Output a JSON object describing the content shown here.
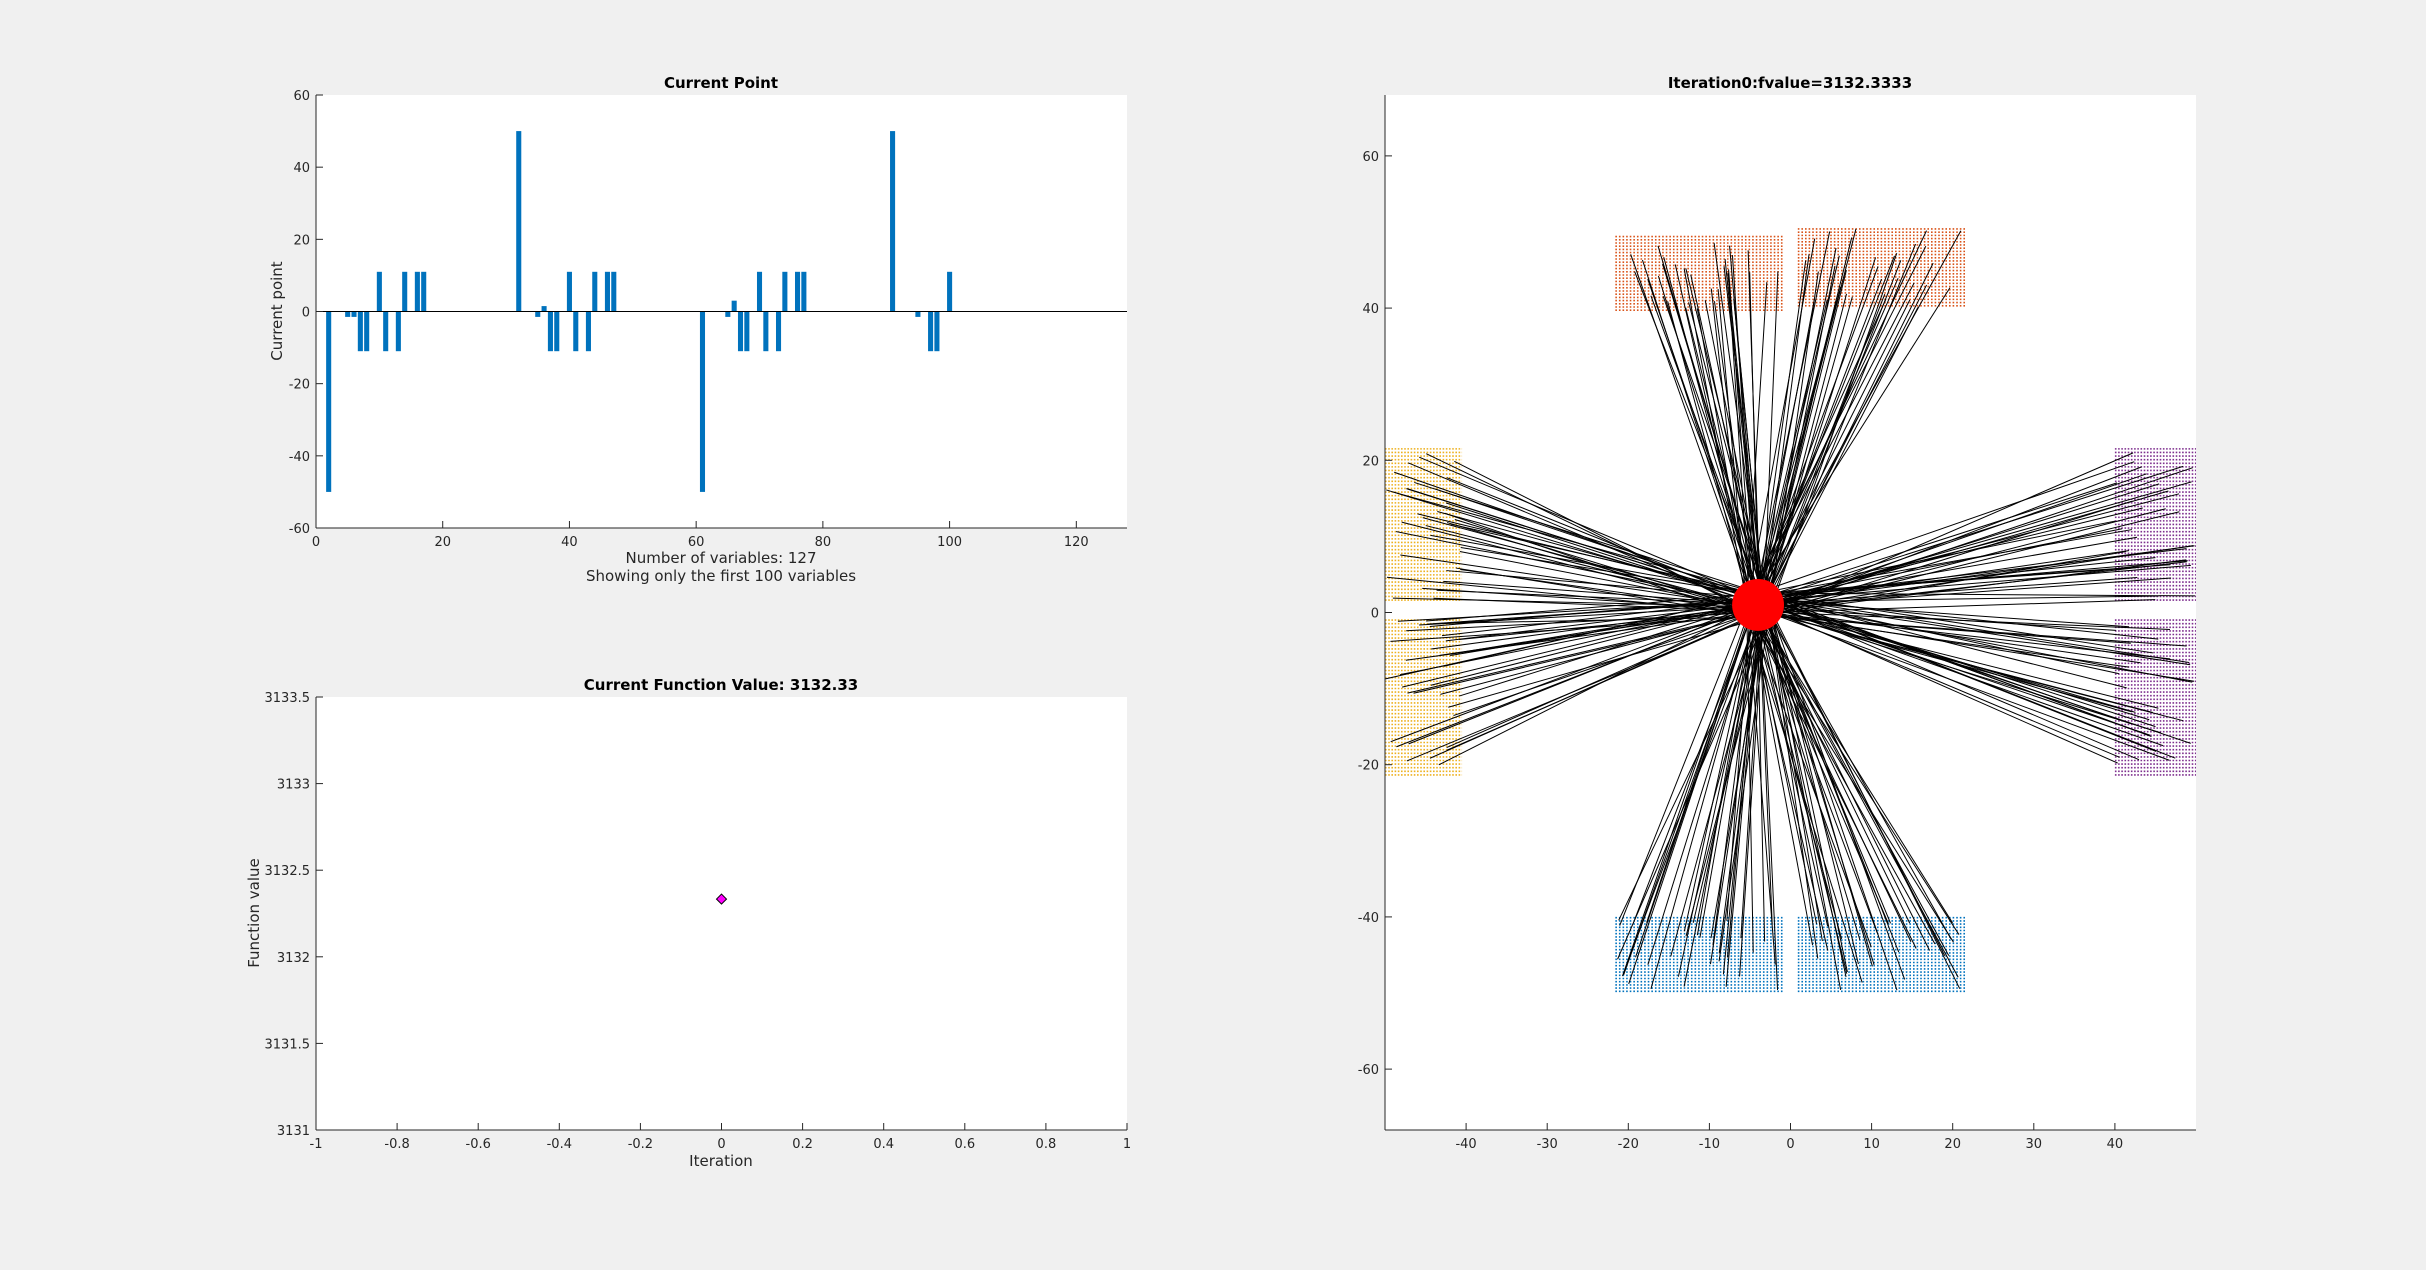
{
  "colors": {
    "figure_bg": "#f0f0f0",
    "axes_bg": "#ffffff",
    "bar": "#0072bd",
    "marker_face": "#ff00ff",
    "hub": "#ff0000",
    "line": "#000000",
    "group_top": "#d95319",
    "group_left": "#edb120",
    "group_right": "#7e2f8e",
    "group_bottom": "#0072bd"
  },
  "chart_data": [
    {
      "id": "current_point",
      "type": "bar",
      "title": "Current Point",
      "xlabel": "",
      "ylabel": "Current point",
      "xlim": [
        0,
        128
      ],
      "ylim": [
        -60,
        60
      ],
      "xticks": [
        0,
        20,
        40,
        60,
        80,
        100,
        120
      ],
      "yticks": [
        -60,
        -40,
        -20,
        0,
        20,
        40,
        60
      ],
      "notes": [
        "Number of variables: 127",
        "Showing only the first 100 variables"
      ],
      "x": [
        2,
        5,
        6,
        7,
        8,
        10,
        11,
        13,
        14,
        16,
        17,
        32,
        35,
        36,
        37,
        38,
        40,
        41,
        43,
        44,
        46,
        47,
        61,
        65,
        66,
        67,
        68,
        70,
        71,
        73,
        74,
        76,
        77,
        91,
        95,
        97,
        98,
        100
      ],
      "values": [
        -50,
        -1.5,
        -1.5,
        -11,
        -11,
        11,
        -11,
        -11,
        11,
        11,
        11,
        50,
        -1.5,
        1.5,
        -11,
        -11,
        11,
        -11,
        -11,
        11,
        11,
        11,
        -50,
        -1.5,
        3,
        -11,
        -11,
        11,
        -11,
        -11,
        11,
        11,
        11,
        50,
        -1.5,
        -11,
        -11,
        11
      ]
    },
    {
      "id": "function_value",
      "type": "scatter",
      "title": "Current Function Value: 3132.33",
      "xlabel": "Iteration",
      "ylabel": "Function value",
      "xlim": [
        -1,
        1
      ],
      "ylim": [
        3131,
        3133.5
      ],
      "xticks": [
        -1,
        -0.8,
        -0.6,
        -0.4,
        -0.2,
        0,
        0.2,
        0.4,
        0.6,
        0.8,
        1
      ],
      "xtick_labels": [
        "-1",
        "-0.8",
        "-0.6",
        "-0.4",
        "-0.2",
        "0",
        "0.2",
        "0.4",
        "0.6",
        "0.8",
        "1"
      ],
      "yticks": [
        3131,
        3131.5,
        3132,
        3132.5,
        3133,
        3133.5
      ],
      "ytick_labels": [
        "3131",
        "3131.5",
        "3132",
        "3132.5",
        "3133",
        "3133.5"
      ],
      "points": [
        {
          "x": 0,
          "y": 3132.3333
        }
      ],
      "marker": "diamond"
    },
    {
      "id": "placement",
      "type": "scatter",
      "title": "Iteration0:fvalue=3132.3333",
      "xlabel": "",
      "ylabel": "",
      "xlim": [
        -50,
        50
      ],
      "ylim": [
        -68,
        68
      ],
      "xticks": [
        -40,
        -30,
        -20,
        -10,
        0,
        10,
        20,
        30,
        40
      ],
      "yticks": [
        -60,
        -40,
        -20,
        0,
        20,
        40,
        60
      ],
      "hub": {
        "x": -4,
        "y": 1,
        "radius": 3.2
      },
      "groups": [
        {
          "side": "top",
          "color_key": "group_top",
          "blocks": [
            {
              "x0": -21.5,
              "x1": -1,
              "y0": 39.5,
              "y1": 49.5
            },
            {
              "x0": 1,
              "x1": 21.5,
              "y0": 40,
              "y1": 50.5
            }
          ]
        },
        {
          "side": "left",
          "color_key": "group_left",
          "blocks": [
            {
              "x0": -50,
              "x1": -40.5,
              "y0": 1.5,
              "y1": 21.5
            },
            {
              "x0": -50,
              "x1": -40.5,
              "y0": -21.5,
              "y1": -1
            }
          ]
        },
        {
          "side": "right",
          "color_key": "group_right",
          "blocks": [
            {
              "x0": 40,
              "x1": 50,
              "y0": 1.5,
              "y1": 21.5
            },
            {
              "x0": 40,
              "x1": 50,
              "y0": -21.5,
              "y1": -1
            }
          ]
        },
        {
          "side": "bottom",
          "color_key": "group_bottom",
          "blocks": [
            {
              "x0": -21.5,
              "x1": -1,
              "y0": -50,
              "y1": -40
            },
            {
              "x0": 1,
              "x1": 21.5,
              "y0": -50,
              "y1": -40
            }
          ]
        }
      ]
    }
  ]
}
